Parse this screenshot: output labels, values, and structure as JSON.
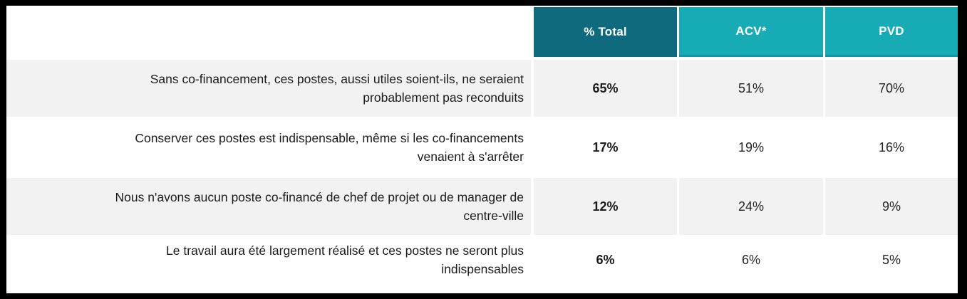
{
  "table": {
    "header": {
      "total_label": "% Total",
      "acv_label": "ACV*",
      "pvd_label": "PVD"
    },
    "rows": [
      {
        "label": "Sans co-financement, ces postes, aussi utiles soient-ils, ne seraient probablement pas reconduits",
        "total": "65%",
        "acv": "51%",
        "pvd": "70%"
      },
      {
        "label": "Conserver ces postes est indispensable, même si les co-financements venaient à s'arrêter",
        "total": "17%",
        "acv": "19%",
        "pvd": "16%"
      },
      {
        "label": "Nous n'avons aucun poste co-financé de chef de projet ou de manager de centre-ville",
        "total": "12%",
        "acv": "24%",
        "pvd": "9%"
      },
      {
        "label": "Le travail aura été largement réalisé et ces postes ne seront plus indispensables",
        "total": "6%",
        "acv": "6%",
        "pvd": "5%"
      }
    ],
    "colors": {
      "header_dark": "#0f6a7e",
      "header_light": "#17abb5",
      "row_alt": "#f2f2f2",
      "frame": "#000000",
      "header_text": "#ffffff",
      "body_text": "#1b1b1b"
    }
  },
  "chart_data": {
    "type": "table",
    "columns": [
      "% Total",
      "ACV*",
      "PVD"
    ],
    "unit": "%",
    "rows": [
      {
        "label": "Sans co-financement, ces postes, aussi utiles soient-ils, ne seraient probablement pas reconduits",
        "values": [
          65,
          51,
          70
        ]
      },
      {
        "label": "Conserver ces postes est indispensable, même si les co-financements venaient à s'arrêter",
        "values": [
          17,
          19,
          16
        ]
      },
      {
        "label": "Nous n'avons aucun poste co-financé de chef de projet ou de manager de centre-ville",
        "values": [
          12,
          24,
          9
        ]
      },
      {
        "label": "Le travail aura été largement réalisé et ces postes ne seront plus indispensables",
        "values": [
          6,
          6,
          5
        ]
      }
    ],
    "notes": "Survey result table; '% Total' column shown bold; ACV* and PVD are sub-group breakdowns"
  }
}
